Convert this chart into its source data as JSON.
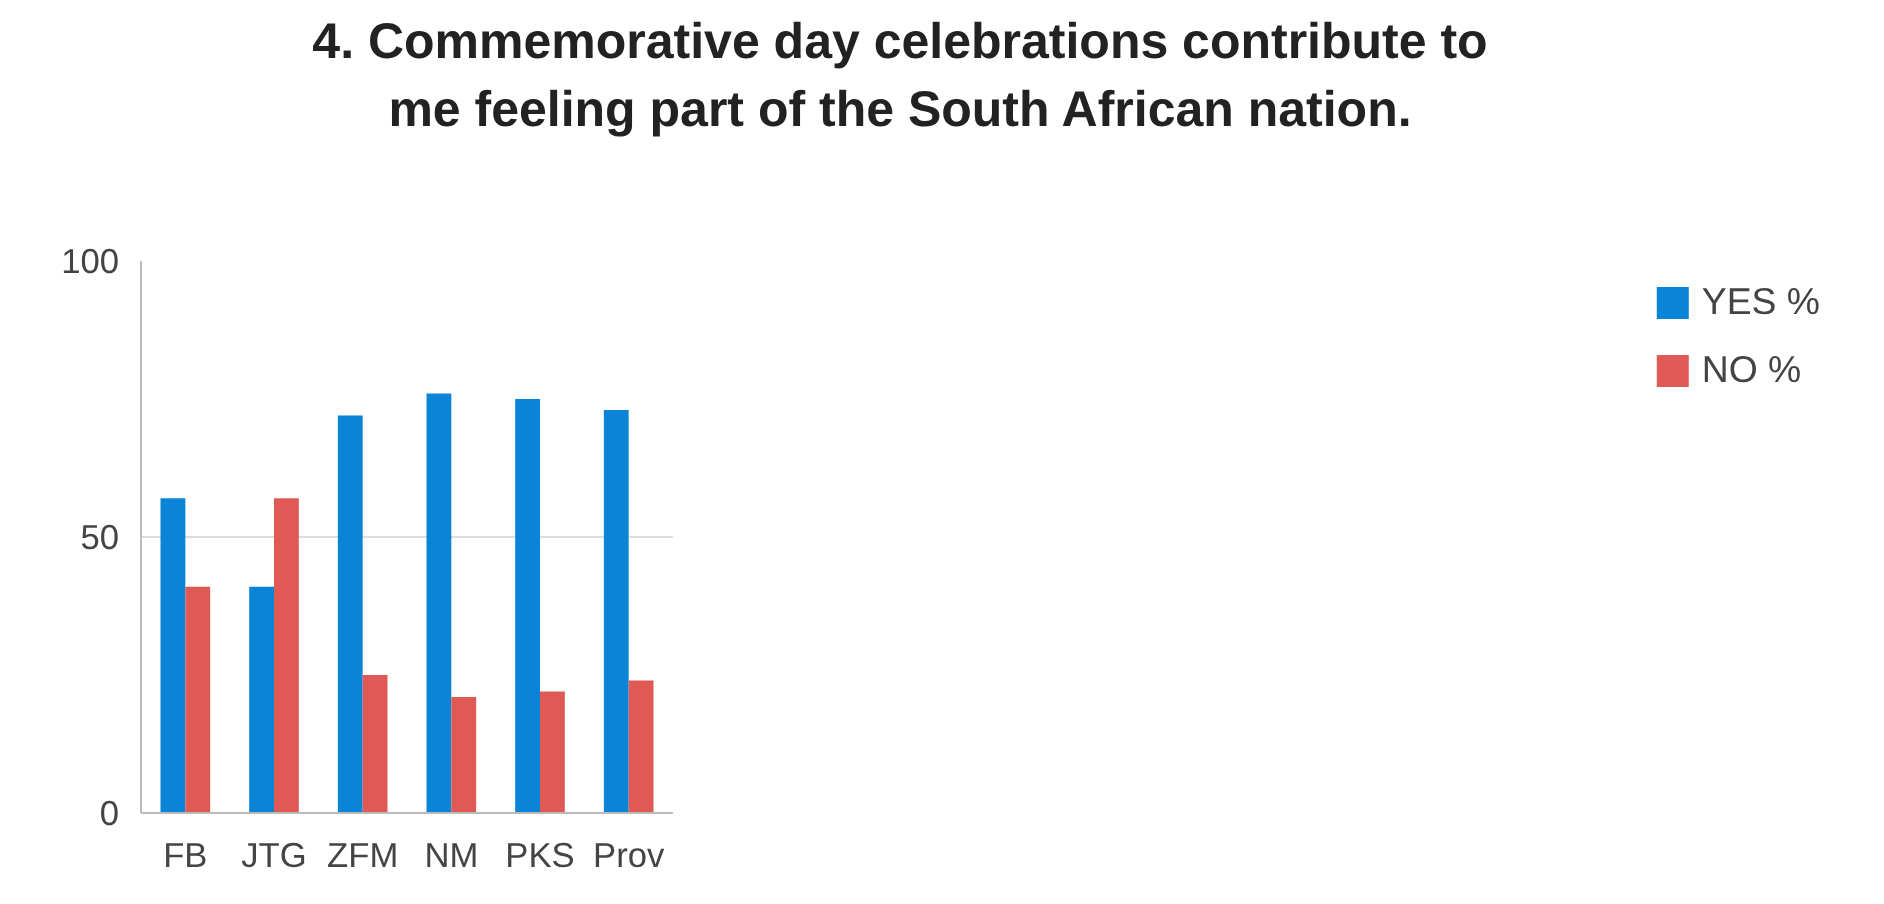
{
  "chart_data": {
    "type": "bar",
    "title": "4. Commemorative day celebrations contribute to me feeling part of the South African nation.",
    "categories": [
      "FB",
      "JTG",
      "ZFM",
      "NM",
      "PKS",
      "Prov"
    ],
    "series": [
      {
        "name": "YES %",
        "color": "#0a84d6",
        "values": [
          57,
          41,
          72,
          76,
          75,
          73
        ]
      },
      {
        "name": "NO %",
        "color": "#e05a55",
        "values": [
          41,
          57,
          25,
          21,
          22,
          24
        ]
      }
    ],
    "ylim": [
      0,
      100
    ],
    "yticks": [
      0,
      50,
      100
    ],
    "grid": "y",
    "legend": "right"
  }
}
